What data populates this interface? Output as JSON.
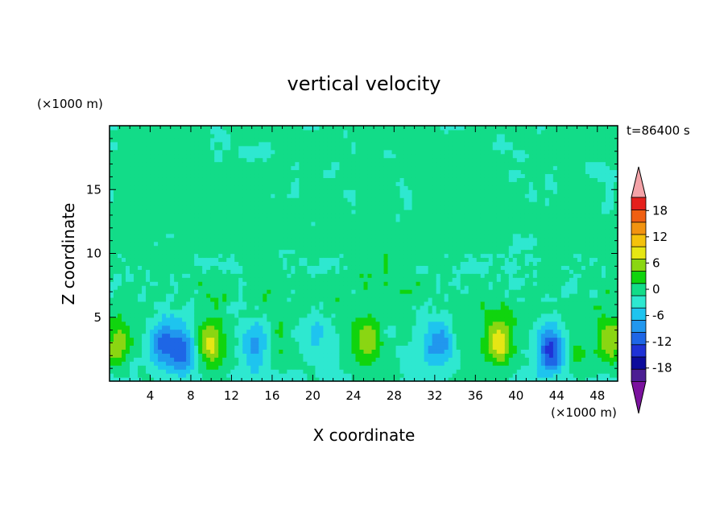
{
  "chart_data": {
    "type": "heatmap",
    "title": "vertical velocity",
    "xlabel": "X coordinate",
    "ylabel": "Z coordinate",
    "x_unit": "(×1000 m)",
    "y_unit": "(×1000 m)",
    "time_label": "t=86400 s",
    "xlim": [
      0,
      50
    ],
    "ylim": [
      0,
      20
    ],
    "x_ticks": [
      4,
      8,
      12,
      16,
      20,
      24,
      28,
      32,
      36,
      40,
      44,
      48
    ],
    "y_ticks": [
      5,
      10,
      15
    ],
    "colorbar": {
      "tick_labels": [
        "18",
        "12",
        "6",
        "0",
        "-6",
        "-12",
        "-18"
      ],
      "tick_values": [
        18,
        12,
        6,
        0,
        -6,
        -12,
        -18
      ],
      "levels": [
        -21,
        -18,
        -15,
        -12,
        -9,
        -6,
        -3,
        0,
        3,
        6,
        9,
        12,
        15,
        18,
        21
      ],
      "colors": [
        "#4b1e93",
        "#0d0c9c",
        "#1f32d6",
        "#1e66e6",
        "#2197ee",
        "#1ec4ef",
        "#2ee8d0",
        "#12dc88",
        "#10d40e",
        "#8ad612",
        "#e6e614",
        "#f4c20c",
        "#f29310",
        "#ef5f12",
        "#e5201c"
      ],
      "over_color": "#f4a3a8",
      "under_color": "#7b129e"
    },
    "field": {
      "background_value": 1.0,
      "lower_layer_value": -1.5,
      "cells": [
        {
          "x": 0.8,
          "z": 3.0,
          "w": 0.0,
          "amp": 8.0
        },
        {
          "x": 5.2,
          "z": 3.0,
          "w": 0.0,
          "amp": -10.0
        },
        {
          "x": 7.2,
          "z": 2.4,
          "w": 0.0,
          "amp": -11.0
        },
        {
          "x": 9.9,
          "z": 2.9,
          "w": 0.0,
          "amp": 9.0
        },
        {
          "x": 14.3,
          "z": 2.9,
          "w": 0.0,
          "amp": -8.0
        },
        {
          "x": 17.0,
          "z": 3.3,
          "w": 0.0,
          "amp": 2.5
        },
        {
          "x": 20.4,
          "z": 3.7,
          "w": 0.0,
          "amp": -5.0
        },
        {
          "x": 25.4,
          "z": 3.1,
          "w": 0.0,
          "amp": 9.0
        },
        {
          "x": 32.5,
          "z": 2.9,
          "w": 0.0,
          "amp": -9.0
        },
        {
          "x": 35.5,
          "z": 1.9,
          "w": 0.0,
          "amp": 2.5
        },
        {
          "x": 38.4,
          "z": 3.0,
          "w": 0.0,
          "amp": 11.0
        },
        {
          "x": 43.4,
          "z": 2.5,
          "w": 0.0,
          "amp": -13.0
        },
        {
          "x": 46.0,
          "z": 2.4,
          "w": 0.0,
          "amp": 4.0
        },
        {
          "x": 49.4,
          "z": 3.1,
          "w": 0.0,
          "amp": 8.0
        }
      ]
    }
  }
}
